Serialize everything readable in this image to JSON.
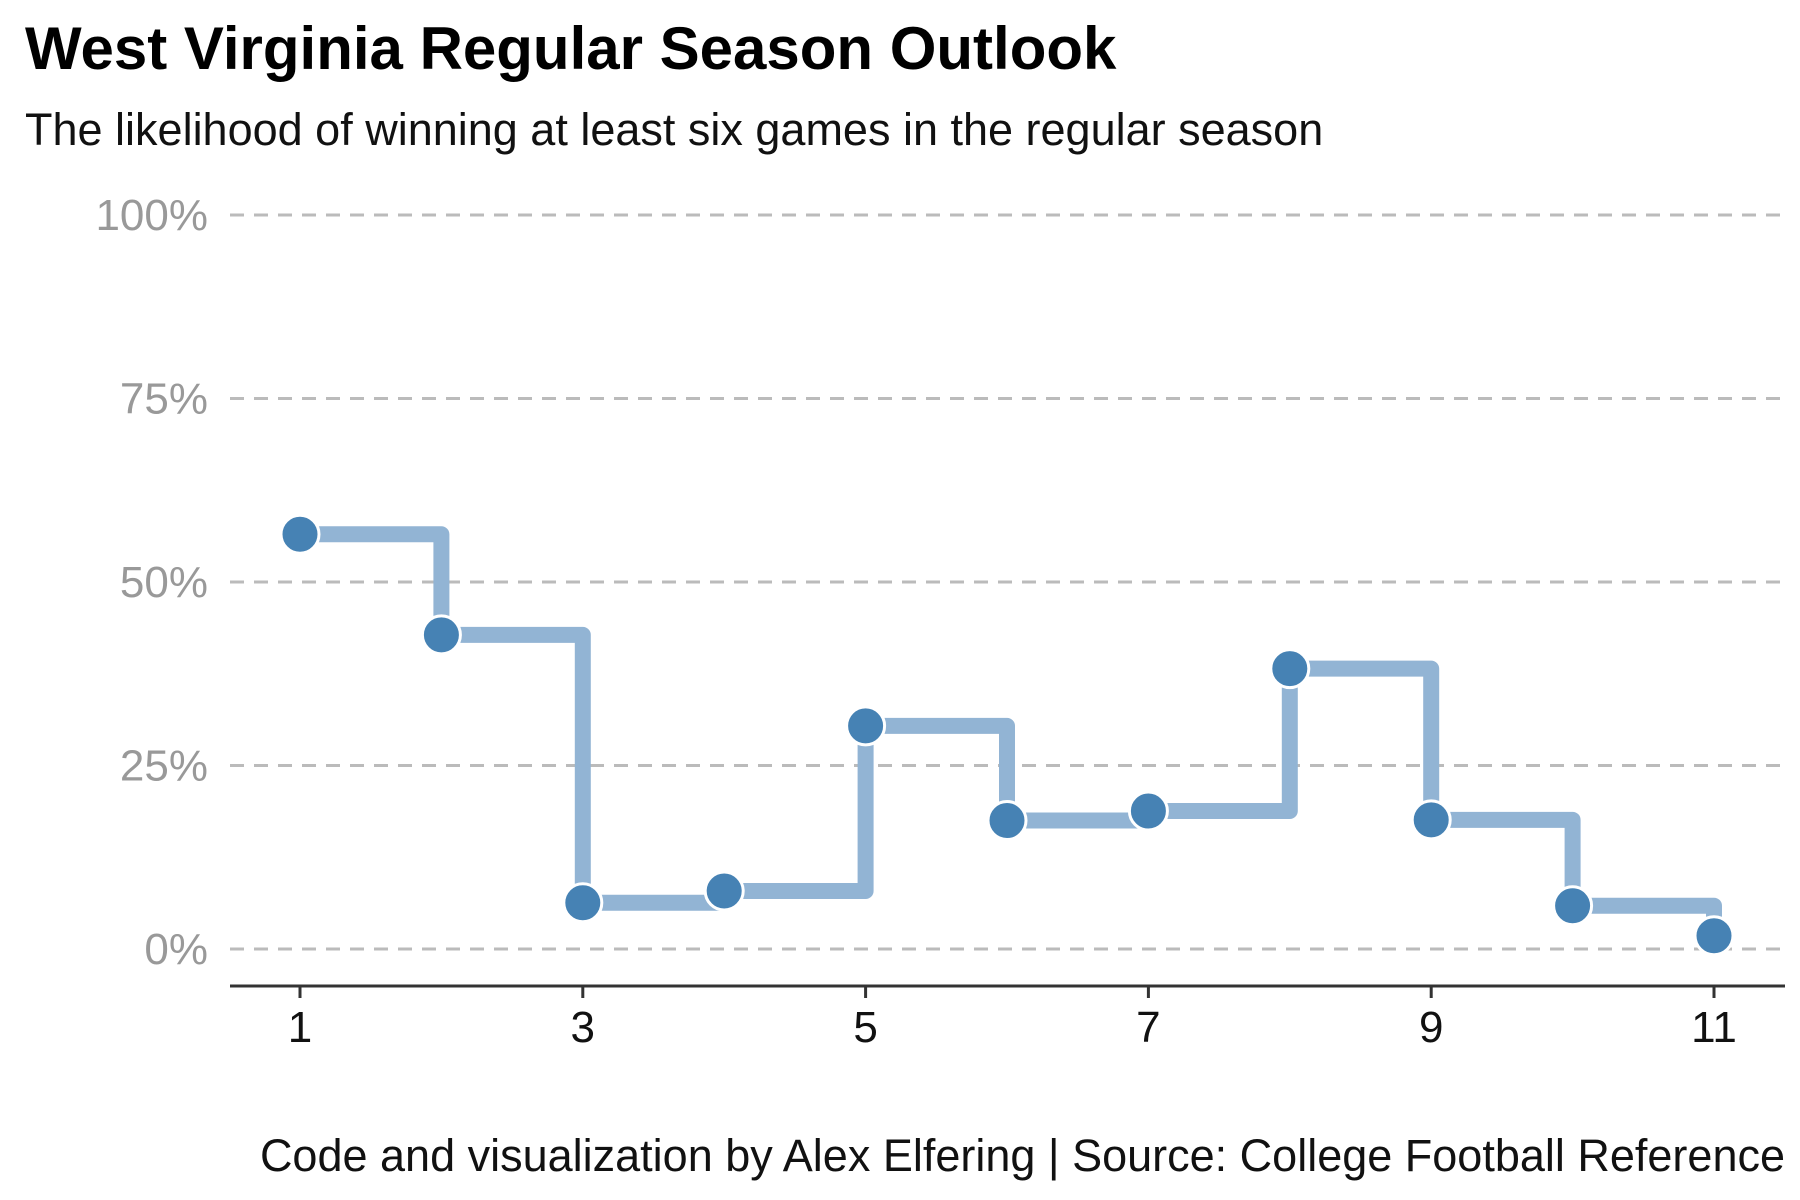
{
  "title": "West Virginia Regular Season Outlook",
  "subtitle": "The likelihood of winning at least six games in the regular season",
  "caption": "Code and visualization by Alex Elfering | Source: College Football Reference",
  "colors": {
    "step_line": "#92B4D4",
    "points": "#4682B4",
    "grid": "#BBBBBB",
    "axis": "#333333",
    "ytick": "#999999"
  },
  "chart_data": {
    "type": "line",
    "style": "step",
    "x": [
      1,
      2,
      3,
      4,
      5,
      6,
      7,
      8,
      9,
      10,
      11
    ],
    "y": [
      0.565,
      0.428,
      0.063,
      0.079,
      0.304,
      0.175,
      0.188,
      0.382,
      0.176,
      0.059,
      0.018
    ],
    "xlim": [
      0.5,
      11.5
    ],
    "ylim": [
      -0.05,
      1.0
    ],
    "x_ticks": [
      1,
      3,
      5,
      7,
      9,
      11
    ],
    "x_tick_labels": [
      "1",
      "3",
      "5",
      "7",
      "9",
      "11"
    ],
    "y_ticks": [
      0,
      0.25,
      0.5,
      0.75,
      1.0
    ],
    "y_tick_labels": [
      "0%",
      "25%",
      "50%",
      "75%",
      "100%"
    ],
    "grid": "horizontal dashed",
    "xlabel": "",
    "ylabel": ""
  }
}
